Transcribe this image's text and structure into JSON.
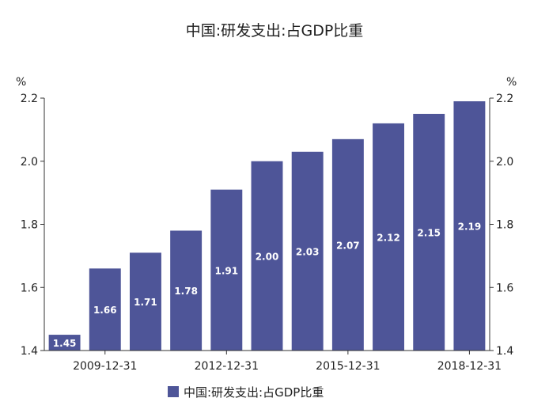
{
  "chart_data": {
    "type": "bar",
    "title": "中国:研发支出:占GDP比重",
    "left_unit": "%",
    "right_unit": "%",
    "categories": [
      "2008-12-31",
      "2009-12-31",
      "2010-12-31",
      "2011-12-31",
      "2012-12-31",
      "2013-12-31",
      "2014-12-31",
      "2015-12-31",
      "2016-12-31",
      "2017-12-31",
      "2018-12-31"
    ],
    "x_tick_labels": [
      "2009-12-31",
      "2012-12-31",
      "2015-12-31",
      "2018-12-31"
    ],
    "series": [
      {
        "name": "中国:研发支出:占GDP比重",
        "values": [
          1.45,
          1.66,
          1.71,
          1.78,
          1.91,
          2.0,
          2.03,
          2.07,
          2.12,
          2.15,
          2.19
        ],
        "value_labels": [
          "1.45",
          "1.66",
          "1.71",
          "1.78",
          "1.91",
          "2.00",
          "2.03",
          "2.07",
          "2.12",
          "2.15",
          "2.19"
        ],
        "color": "#4e5598"
      }
    ],
    "ylim": [
      1.4,
      2.2
    ],
    "y_ticks": [
      1.4,
      1.6,
      1.8,
      2.0,
      2.2
    ],
    "y_tick_labels": [
      "1.4",
      "1.6",
      "1.8",
      "2.0",
      "2.2"
    ],
    "grid": false,
    "legend_position": "bottom-center"
  }
}
